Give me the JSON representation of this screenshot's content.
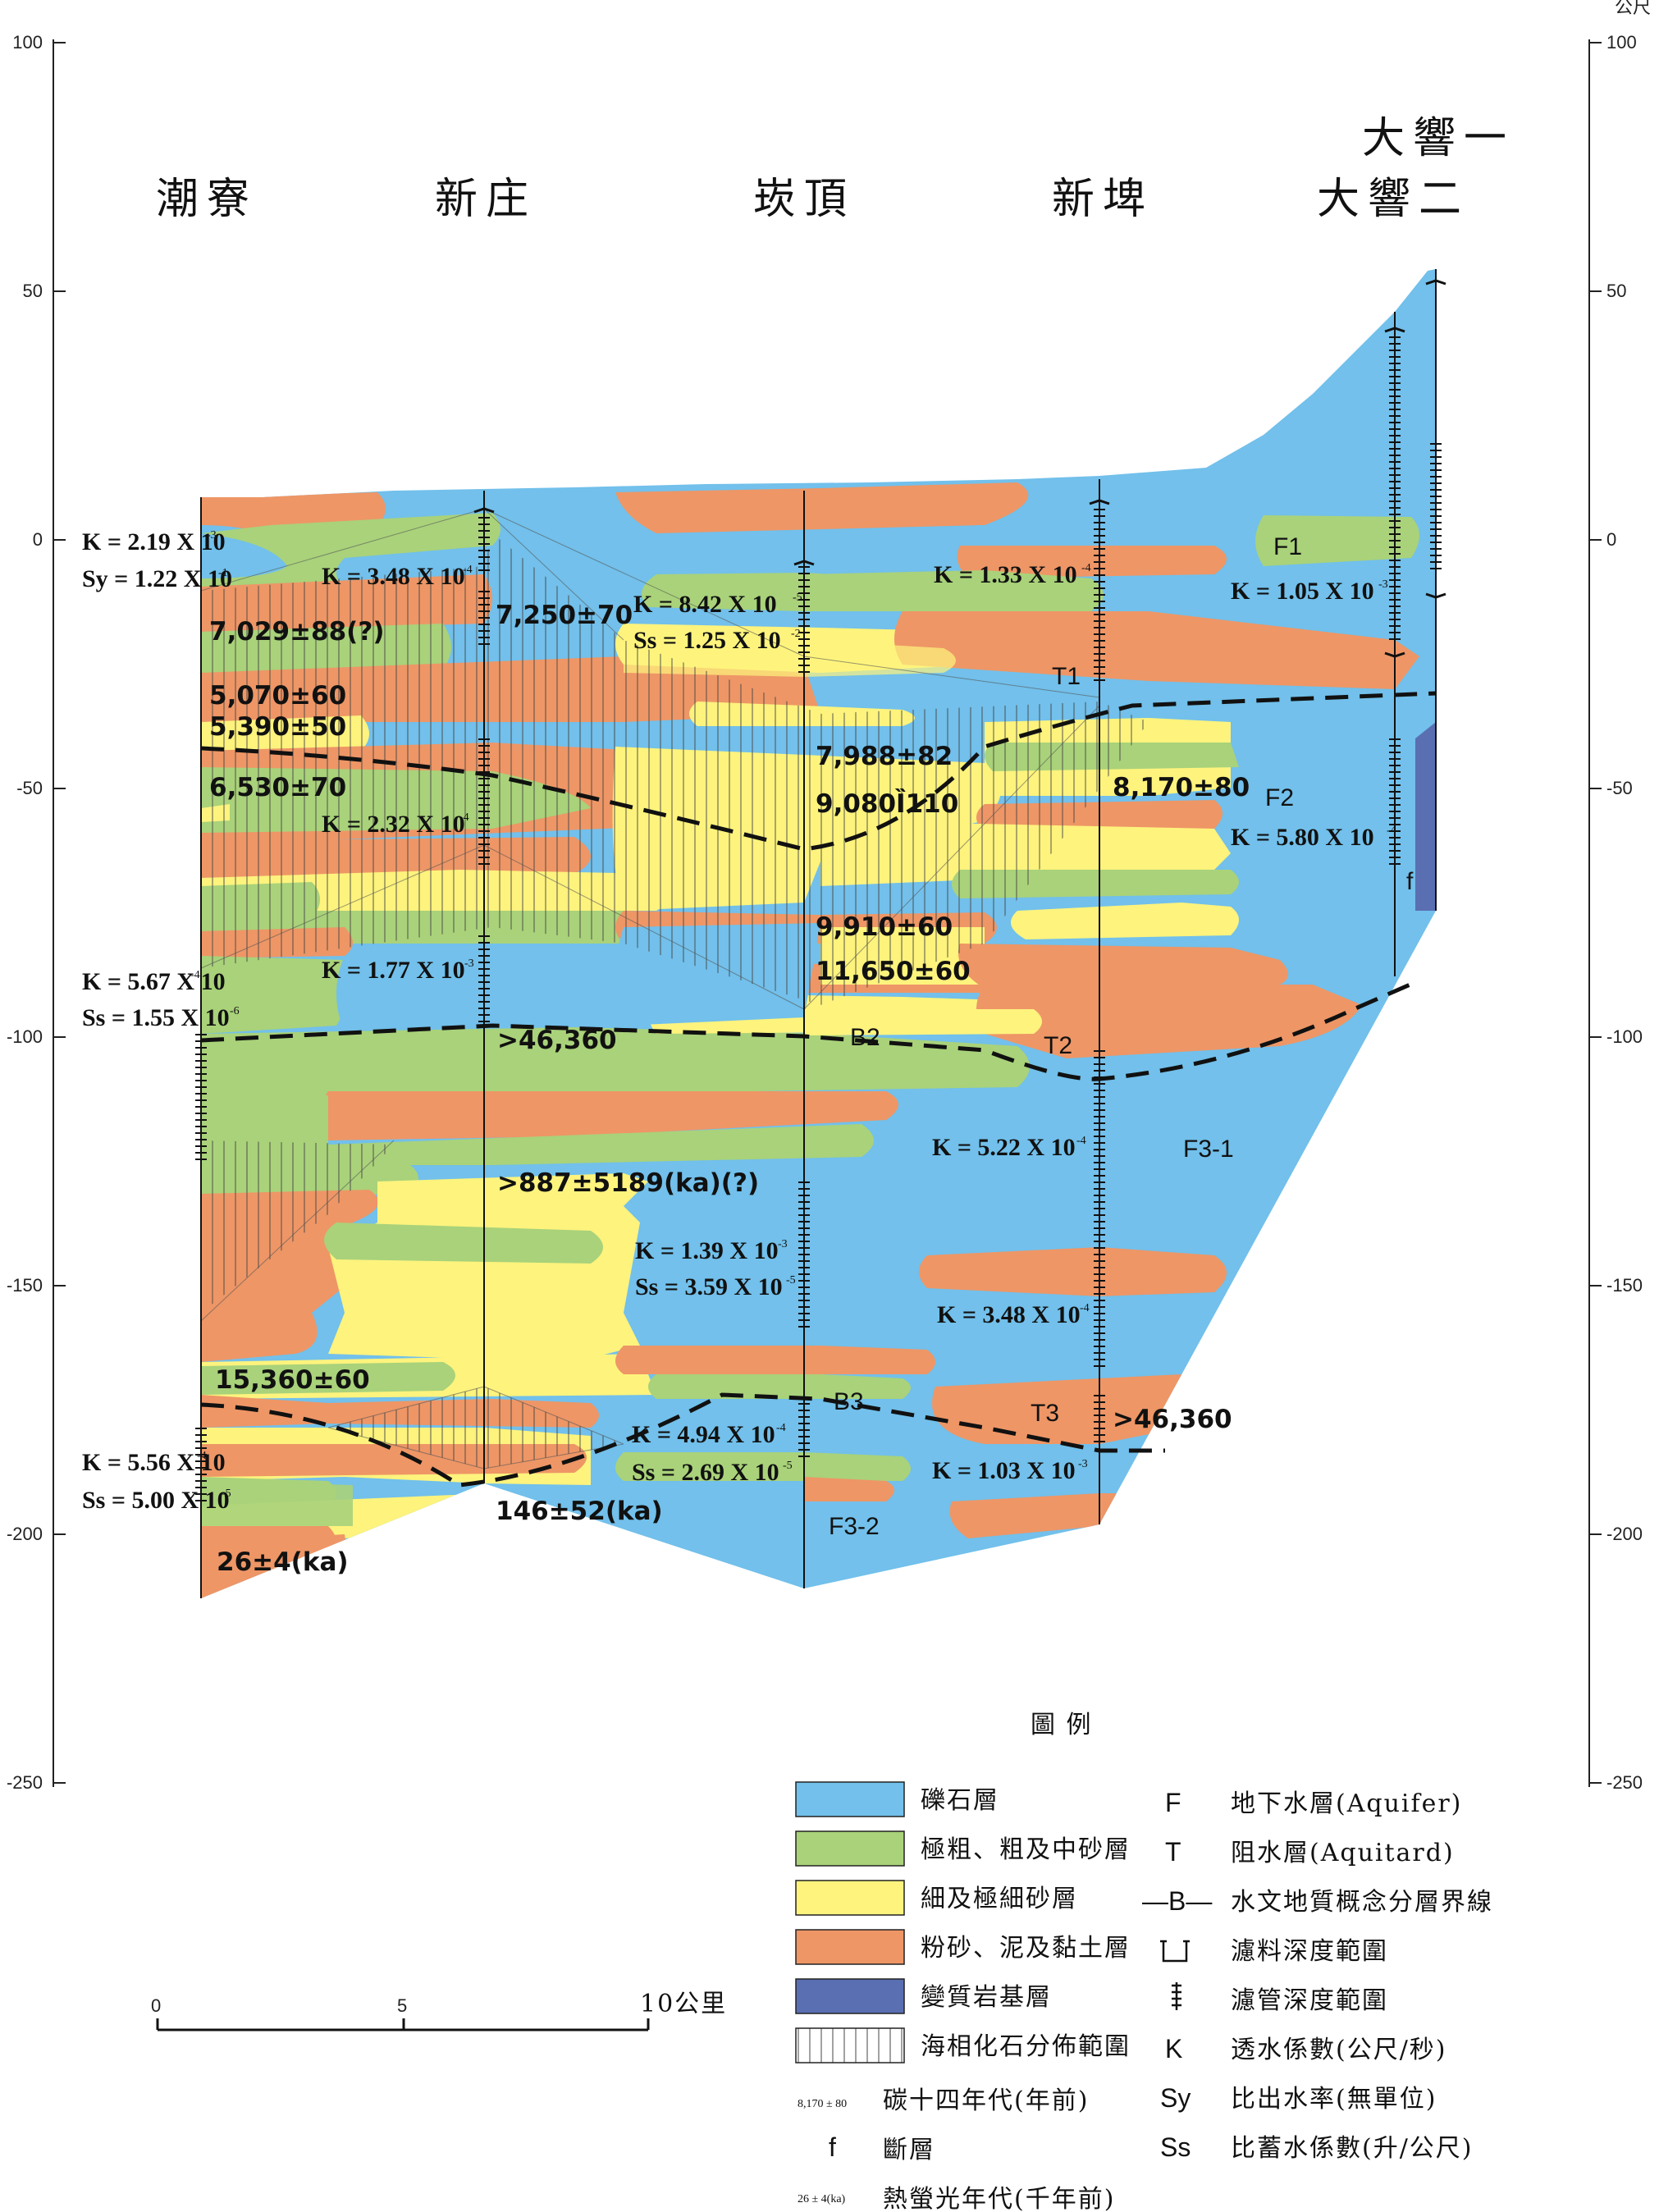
{
  "axis": {
    "unit": "公尺",
    "ticks": [
      "100",
      "50",
      "0",
      "-50",
      "-100",
      "-150",
      "-200",
      "-250"
    ]
  },
  "sites": {
    "chaoliao": "潮寮",
    "xinzhuang": "新庄",
    "tanding": "崁頂",
    "xinpi": "新埤",
    "daxiang1": "大響一",
    "daxiang2": "大響二"
  },
  "params": {
    "k_chaoliao_top": "K = 2.19 X 10",
    "sy_chaoliao_top": "Sy = 1.22 X 10",
    "k_348_top": "K = 3.48 X 10",
    "k_842": "K = 8.42 X 10",
    "ss_125": "Ss = 1.25 X 10",
    "k_133": "K = 1.33 X 10",
    "k_105": "K = 1.05 X 10",
    "k_232": "K = 2.32 X 10",
    "k_580": "K = 5.80 X 10",
    "k_567": "K = 5.67 X 10",
    "ss_155": "Ss = 1.55 X 10",
    "k_177": "K = 1.77 X 10",
    "k_522": "K = 5.22 X 10",
    "k_139": "K = 1.39 X 10",
    "ss_359": "Ss = 3.59 X 10",
    "k_348_low": "K = 3.48 X 10",
    "k_556": "K = 5.56 X 10",
    "ss_500": "Ss = 5.00 X 10",
    "k_494": "K = 4.94 X 10",
    "ss_269": "Ss = 2.69 X 10",
    "k_103": "K = 1.03 X 10"
  },
  "ages": {
    "a7029": "7,029±88(?)",
    "a7250": "7,250±70",
    "a5070": "5,070±60",
    "a5390": "5,390±50",
    "a6530": "6,530±70",
    "a7988": "7,988±82",
    "a9080": "9,080Ȉ110",
    "a8170": "8,170±80",
    "a9910": "9,910±60",
    "a11650": "11,650±60",
    "a46360a": ">46,360",
    "a887": ">887±5189(ka)(?)",
    "a15360": "15,360±60",
    "a46360b": ">46,360",
    "a146": "146±52(ka)",
    "a26": "26±4(ka)"
  },
  "units": {
    "F1": "F1",
    "T1": "T1",
    "F2": "F2",
    "B2": "B2",
    "T2": "T2",
    "F31": "F3-1",
    "B3": "B3",
    "T3": "T3",
    "F32": "F3-2",
    "f": "f"
  },
  "scale": {
    "zero": "0",
    "five": "5",
    "ten": "10公里"
  },
  "legend": {
    "title": "圖 例",
    "colors": {
      "gravel": "#72c0eb",
      "coarse_sand": "#a9d27a",
      "fine_sand": "#fdf37d",
      "clay": "#ee9666",
      "bedrock": "#5a6fb2"
    },
    "gravel": "礫石層",
    "coarse_sand": "極粗、粗及中砂層",
    "fine_sand": "細及極細砂層",
    "clay": "粉砂、泥及黏土層",
    "bedrock": "變質岩基層",
    "marine_fossil": "海相化石分佈範圍",
    "c14_sample": "8,170 ± 80",
    "c14": "碳十四年代(年前)",
    "fault_sym": "f",
    "fault": "斷層",
    "tl_sample": "26 ± 4(ka)",
    "tl": "熱螢光年代(千年前)",
    "F_sym": "F",
    "F": "地下水層(Aquifer)",
    "T_sym": "T",
    "T": "阻水層(Aquitard)",
    "B_sym": "—B—",
    "B": "水文地質概念分層界線",
    "filter": "濾料深度範圍",
    "screen": "濾管深度範圍",
    "K_sym": "K",
    "K": "透水係數(公尺/秒)",
    "Sy_sym": "Sy",
    "Sy": "比出水率(無單位)",
    "Ss_sym": "Ss",
    "Ss": "比蓄水係數(升/公尺)"
  }
}
